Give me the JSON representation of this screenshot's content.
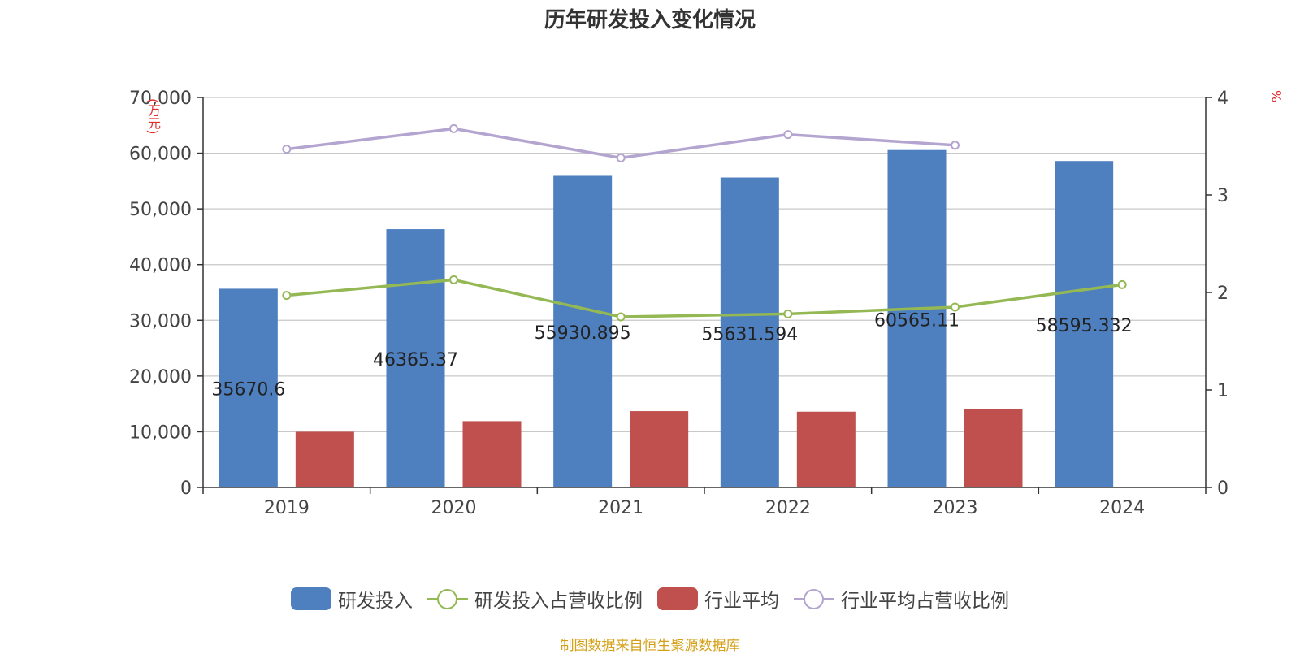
{
  "title": "历年研发投入变化情况",
  "y_left_unit": "(万元)",
  "y_right_unit": "%",
  "source": "制图数据来自恒生聚源数据库",
  "colors": {
    "rd": "#4e7fbf",
    "rd_ratio": "#94b954",
    "industry": "#c0504d",
    "industry_ratio": "#b3a5cf",
    "axis": "#333333",
    "grid": "#c8c8c8",
    "label": "#222222"
  },
  "chart_data": {
    "type": "bar",
    "categories": [
      "2019",
      "2020",
      "2021",
      "2022",
      "2023",
      "2024"
    ],
    "series": [
      {
        "name": "研发投入",
        "type": "bar",
        "axis": "left",
        "values": [
          35670.6,
          46365.37,
          55930.895,
          55631.594,
          60565.11,
          58595.332
        ],
        "data_labels": [
          "35670.6",
          "46365.37",
          "55930.895",
          "55631.594",
          "60565.11",
          "58595.332"
        ]
      },
      {
        "name": "研发投入占营收比例",
        "type": "line",
        "axis": "right",
        "values": [
          1.97,
          2.13,
          1.75,
          1.78,
          1.85,
          2.08
        ]
      },
      {
        "name": "行业平均",
        "type": "bar",
        "axis": "left",
        "values": [
          10000,
          11900,
          13700,
          13600,
          14000,
          null
        ]
      },
      {
        "name": "行业平均占营收比例",
        "type": "line",
        "axis": "right",
        "values": [
          3.47,
          3.68,
          3.38,
          3.62,
          3.51,
          null
        ]
      }
    ],
    "y_left": {
      "min": 0,
      "max": 70000,
      "ticks": [
        "0",
        "10,000",
        "20,000",
        "30,000",
        "40,000",
        "50,000",
        "60,000",
        "70,000"
      ]
    },
    "y_right": {
      "min": 0,
      "max": 4,
      "ticks": [
        "0",
        "1",
        "2",
        "3",
        "4"
      ]
    },
    "grid": true,
    "legend_position": "bottom"
  }
}
